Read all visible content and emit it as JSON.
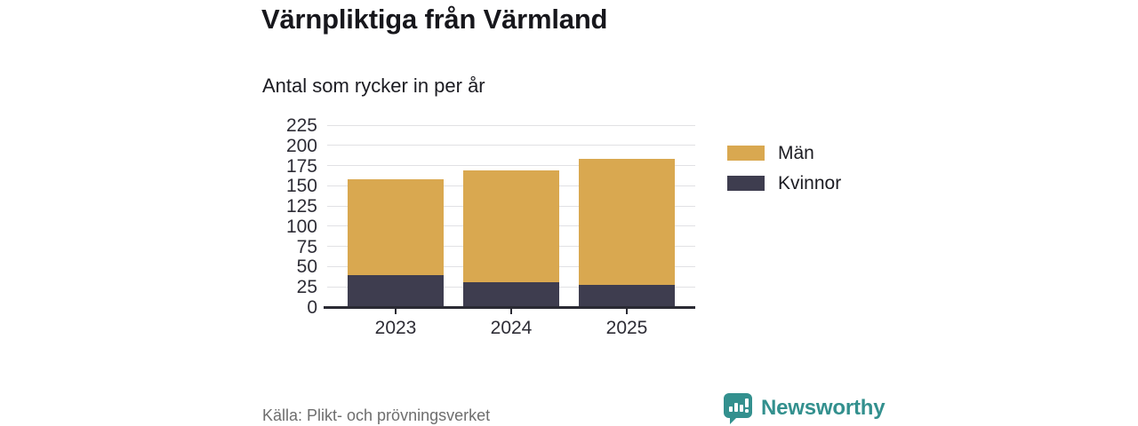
{
  "title": "Värnpliktiga från Värmland",
  "subtitle": "Antal som rycker in per år",
  "source": "Källa: Plikt- och prövningsverket",
  "brand": {
    "name": "Newsworthy",
    "icon": "bar-chart-speech-bubble-icon",
    "color": "#33908e"
  },
  "colors": {
    "men": "#d9a850",
    "women": "#3e3d4f",
    "gridline": "#e1e1e4",
    "axis": "#2a2a33",
    "text": "#2e2d36",
    "muted": "#6e6e6e"
  },
  "chart_data": {
    "type": "bar",
    "stacked": true,
    "title": "Värnpliktiga från Värmland",
    "subtitle": "Antal som rycker in per år",
    "xlabel": "",
    "ylabel": "Antal som rycker in per år",
    "categories": [
      "2023",
      "2024",
      "2025"
    ],
    "series": [
      {
        "name": "Män",
        "color": "#d9a850",
        "values": [
          119,
          138,
          156
        ]
      },
      {
        "name": "Kvinnor",
        "color": "#3e3d4f",
        "values": [
          39,
          31,
          27
        ]
      }
    ],
    "stack_order": [
      "Kvinnor",
      "Män"
    ],
    "totals": [
      158,
      169,
      183
    ],
    "ylim": [
      0,
      225
    ],
    "yticks": [
      0,
      25,
      50,
      75,
      100,
      125,
      150,
      175,
      200,
      225
    ],
    "grid": true,
    "legend_position": "right"
  }
}
